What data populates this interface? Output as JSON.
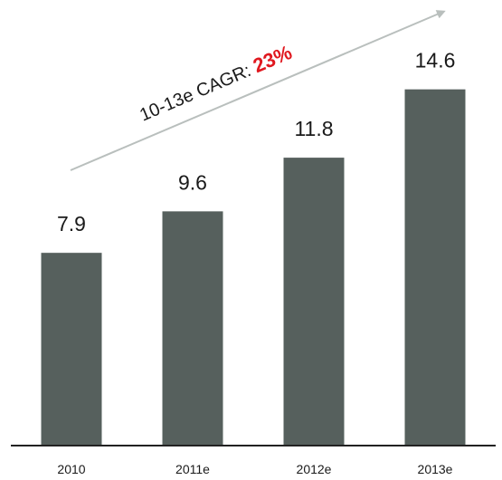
{
  "chart_data": {
    "type": "bar",
    "categories": [
      "2010",
      "2011e",
      "2012e",
      "2013e"
    ],
    "values": [
      7.9,
      9.6,
      11.8,
      14.6
    ],
    "value_labels": [
      "7.9",
      "9.6",
      "11.8",
      "14.6"
    ],
    "ylim": [
      0,
      17
    ],
    "grid": false,
    "legend": "none",
    "annotation": {
      "prefix": "10-13e CAGR: ",
      "value": "23%"
    },
    "colors": {
      "bar": "#56605d",
      "axis": "#222222",
      "arrow": "#b9bfbd",
      "highlight": "#e0181f",
      "text": "#1a1a1a"
    }
  }
}
